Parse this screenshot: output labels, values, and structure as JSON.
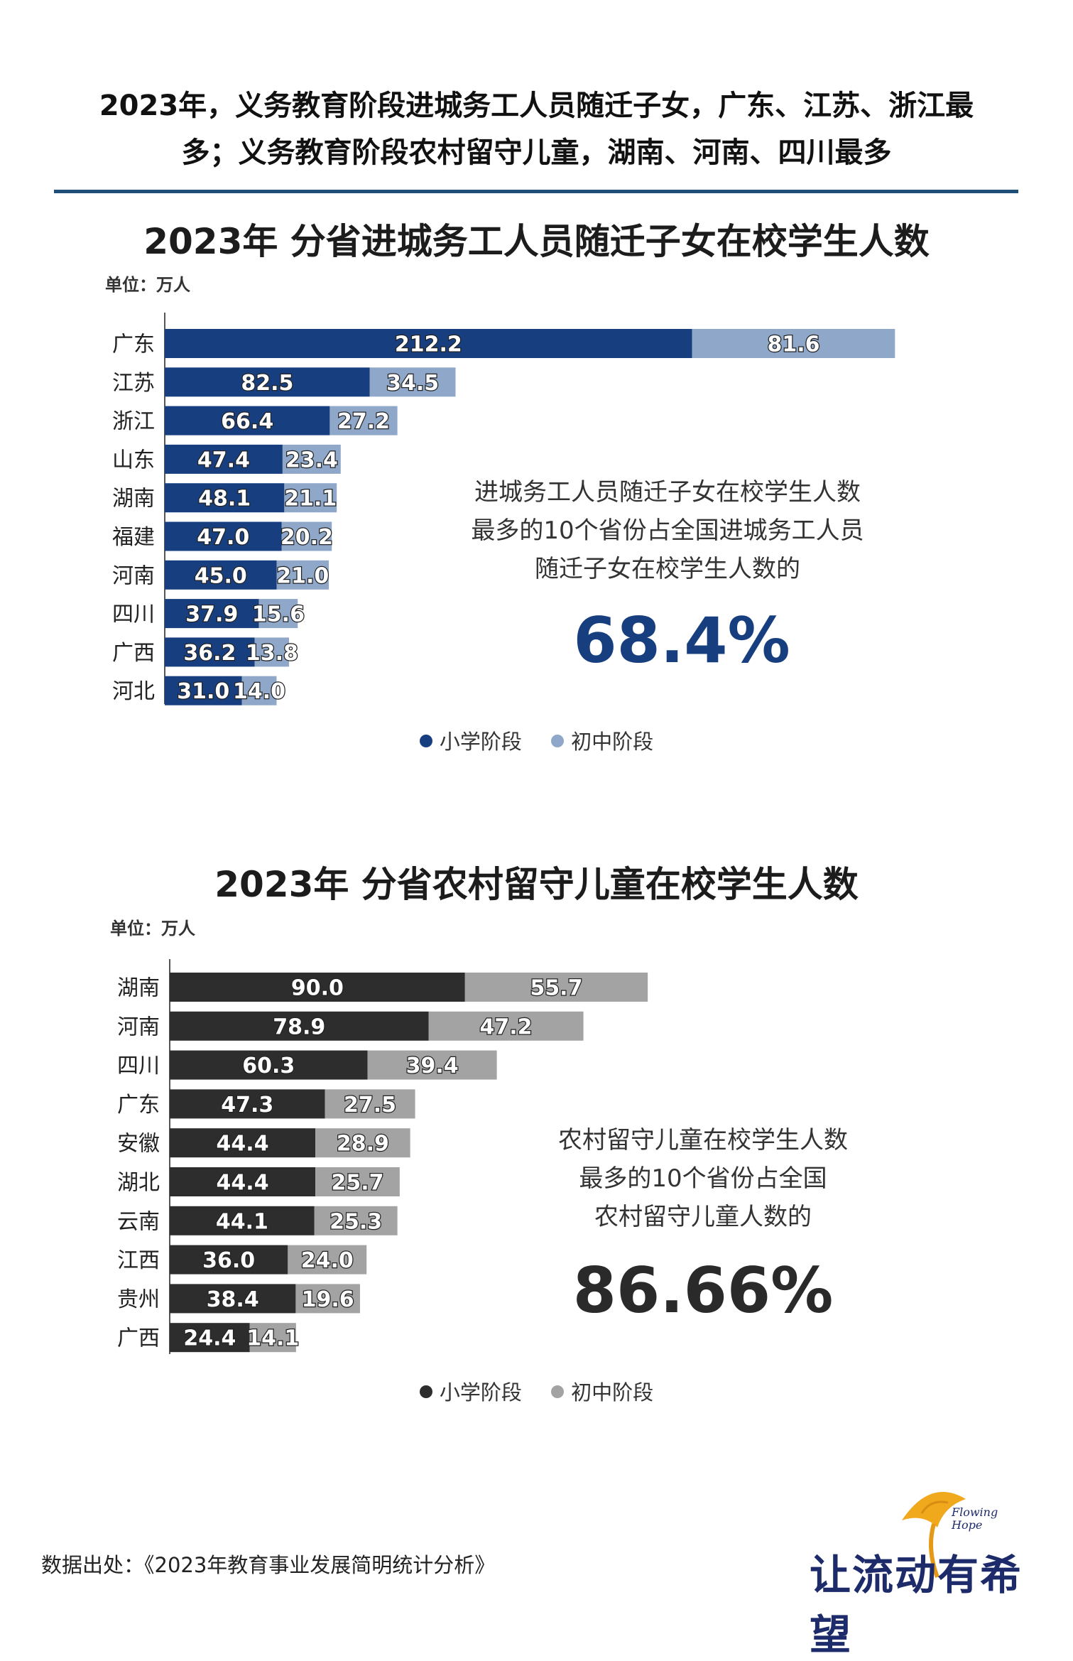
{
  "headline": [
    "2023年，义务教育阶段进城务工人员随迁子女，广东、江苏、浙江最",
    "多；义务教育阶段农村留守儿童，湖南、河南、四川最多"
  ],
  "unit_label": "单位：万人",
  "colors": {
    "c1_primary": "#173f80",
    "c1_junior": "#8fa7c8",
    "c2_primary": "#2d2d2d",
    "c2_junior": "#a3a3a3",
    "rule": "#1f4e79"
  },
  "chart_data": [
    {
      "type": "bar",
      "orientation": "horizontal",
      "stacked": true,
      "title": "2023年 分省进城务工人员随迁子女在校学生人数",
      "unit": "万人",
      "categories": [
        "广东",
        "江苏",
        "浙江",
        "山东",
        "湖南",
        "福建",
        "河南",
        "四川",
        "广西",
        "河北"
      ],
      "series": [
        {
          "name": "小学阶段",
          "values": [
            212.2,
            82.5,
            66.4,
            47.4,
            48.1,
            47.0,
            45.0,
            37.9,
            36.2,
            31.0
          ]
        },
        {
          "name": "初中阶段",
          "values": [
            81.6,
            34.5,
            27.2,
            23.4,
            21.1,
            20.2,
            21.0,
            15.6,
            13.8,
            14.0
          ]
        }
      ],
      "legend": "bottom-center",
      "callout_text": [
        "进城务工人员随迁子女在校学生人数",
        "最多的10个省份占全国进城务工人员",
        "随迁子女在校学生人数的"
      ],
      "callout_value": "68.4%"
    },
    {
      "type": "bar",
      "orientation": "horizontal",
      "stacked": true,
      "title": "2023年 分省农村留守儿童在校学生人数",
      "unit": "万人",
      "categories": [
        "湖南",
        "河南",
        "四川",
        "广东",
        "安徽",
        "湖北",
        "云南",
        "江西",
        "贵州",
        "广西"
      ],
      "series": [
        {
          "name": "小学阶段",
          "values": [
            90.0,
            78.9,
            60.3,
            47.3,
            44.4,
            44.4,
            44.1,
            36.0,
            38.4,
            24.4
          ]
        },
        {
          "name": "初中阶段",
          "values": [
            55.7,
            47.2,
            39.4,
            27.5,
            28.9,
            25.7,
            25.3,
            24.0,
            19.6,
            14.1
          ]
        }
      ],
      "legend": "bottom-center",
      "callout_text": [
        "农村留守儿童在校学生人数",
        "最多的10个省份占全国",
        "农村留守儿童人数的"
      ],
      "callout_value": "86.66%"
    }
  ],
  "source": "数据出处：《2023年教育事业发展简明统计分析》",
  "logo": {
    "brand": "让流动有希望",
    "tag_line1": "Flowing",
    "tag_line2": "Hope"
  }
}
